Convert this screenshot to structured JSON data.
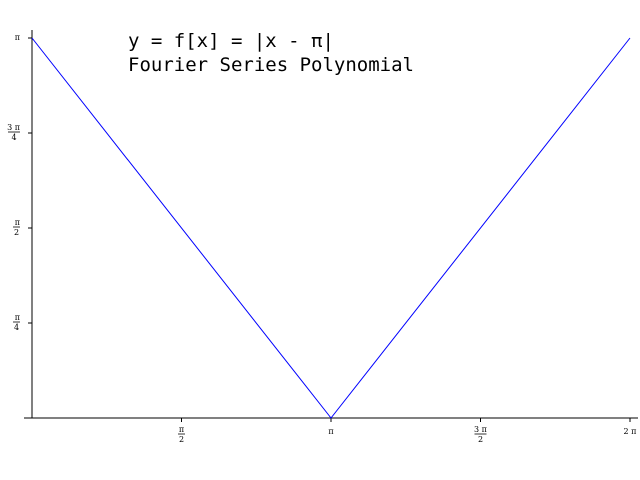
{
  "chart_data": {
    "type": "line",
    "title": "y = f[x] = |x - π|",
    "subtitle": "Fourier Series Polynomial",
    "xlabel": "",
    "ylabel": "",
    "xlim": [
      0,
      6.2832
    ],
    "ylim": [
      0,
      3.1416
    ],
    "grid": false,
    "legend": "none",
    "line_color": "#0000ff",
    "x_ticks": [
      {
        "value": 1.5708,
        "num": "π",
        "den": "2"
      },
      {
        "value": 3.1416,
        "num": "π",
        "den": ""
      },
      {
        "value": 4.7124,
        "num": "3 π",
        "den": "2"
      },
      {
        "value": 6.2832,
        "num": "2 π",
        "den": ""
      }
    ],
    "y_ticks": [
      {
        "value": 0.7854,
        "num": "π",
        "den": "4"
      },
      {
        "value": 1.5708,
        "num": "π",
        "den": "2"
      },
      {
        "value": 2.3562,
        "num": "3 π",
        "den": "4"
      },
      {
        "value": 3.1416,
        "num": "π",
        "den": ""
      }
    ],
    "series": [
      {
        "x": [
          0,
          3.1416,
          6.2832
        ],
        "y": [
          3.1416,
          0,
          3.1416
        ]
      }
    ]
  }
}
